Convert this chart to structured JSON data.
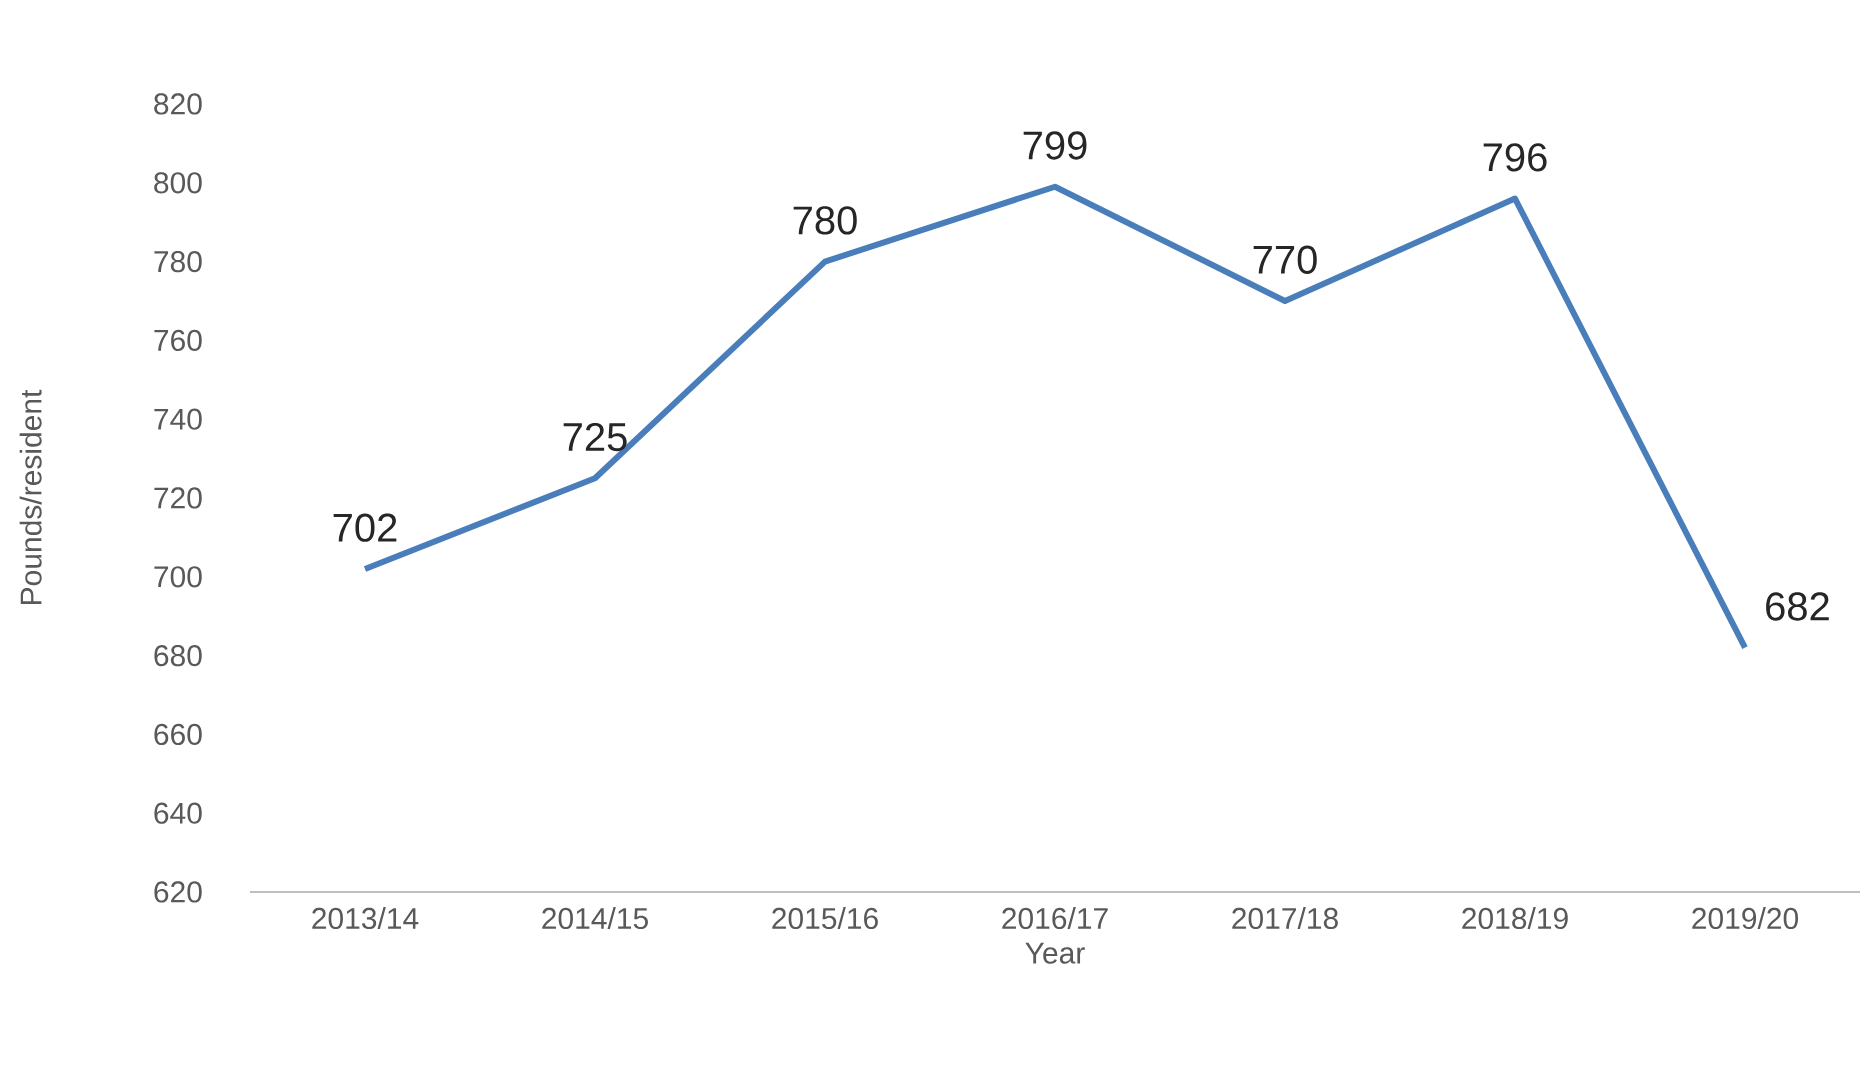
{
  "chart_data": {
    "type": "line",
    "xlabel": "Year",
    "ylabel": "Pounds/resident",
    "categories": [
      "2013/14",
      "2014/15",
      "2015/16",
      "2016/17",
      "2017/18",
      "2018/19",
      "2019/20"
    ],
    "values": [
      702,
      725,
      780,
      799,
      770,
      796,
      682
    ],
    "color": "#4a7ebb",
    "ylim": [
      620,
      820
    ],
    "yticks": [
      620,
      640,
      660,
      680,
      700,
      720,
      740,
      760,
      780,
      800,
      820
    ],
    "data_labels": true,
    "marker": "none",
    "line_style": "solid"
  }
}
